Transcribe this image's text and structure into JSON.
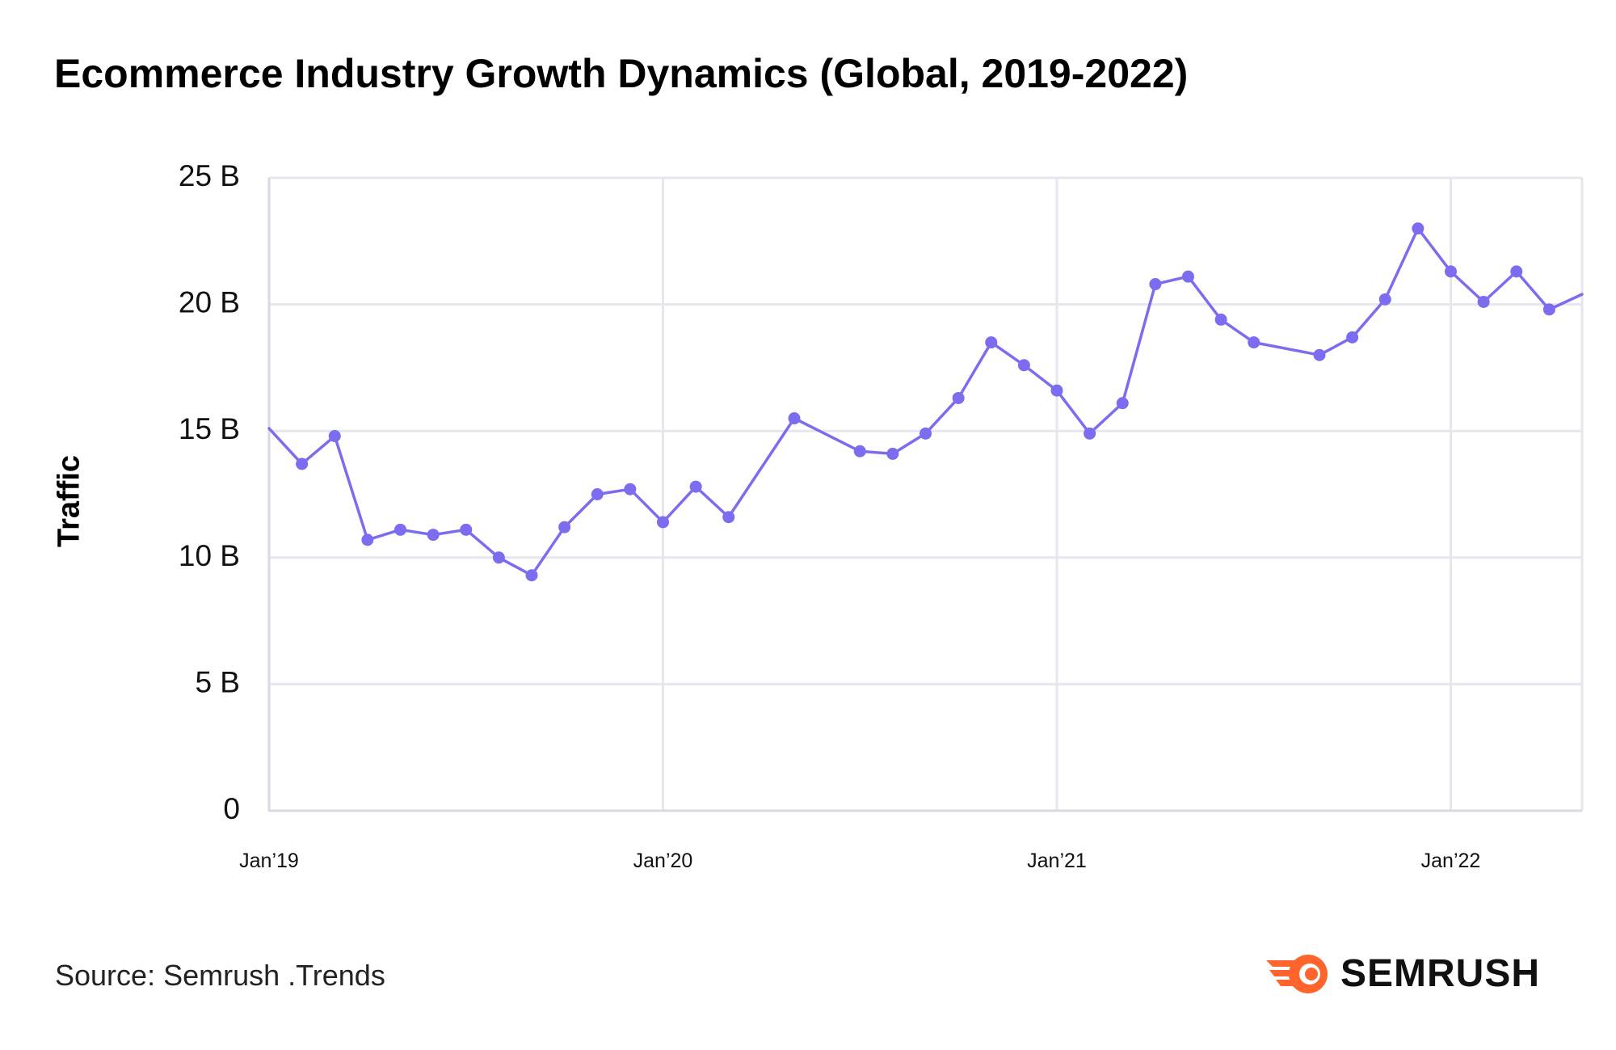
{
  "title": "Ecommerce Industry Growth Dynamics (Global, 2019-2022)",
  "source": "Source: Semrush .Trends",
  "brand": {
    "name": "SEMRUSH",
    "logo_icon": "semrush-fireball-icon",
    "accent": "#FF642D"
  },
  "chart_data": {
    "type": "line",
    "title": "Ecommerce Industry Growth Dynamics (Global, 2019-2022)",
    "xlabel": "",
    "ylabel": "Traffic",
    "ylim": [
      0,
      25
    ],
    "xlim": [
      0,
      40
    ],
    "y_ticks": [
      0,
      5,
      10,
      15,
      20,
      25
    ],
    "y_tick_labels": [
      "0",
      "5 B",
      "10 B",
      "15 B",
      "20 B",
      "25 B"
    ],
    "x_ticks": [
      0,
      12,
      24,
      36
    ],
    "x_tick_labels": [
      "Jan’19",
      "Jan’20",
      "Jan’21",
      "Jan’22"
    ],
    "grid": true,
    "line_color": "#7B6CF0",
    "series": [
      {
        "name": "Traffic",
        "x": [
          0,
          1,
          2,
          3,
          4,
          5,
          6,
          7,
          8,
          9,
          10,
          11,
          12,
          13,
          14,
          16,
          18,
          19,
          20,
          21,
          22,
          23,
          24,
          25,
          26,
          27,
          28,
          29,
          30,
          32,
          33,
          34,
          35,
          36,
          37,
          38,
          39,
          40
        ],
        "values": [
          15.1,
          13.7,
          14.8,
          10.7,
          11.1,
          10.9,
          11.1,
          10.0,
          9.3,
          11.2,
          12.5,
          12.7,
          11.4,
          12.8,
          11.6,
          15.5,
          14.2,
          14.1,
          14.9,
          16.3,
          18.5,
          17.6,
          16.6,
          14.9,
          16.1,
          20.8,
          21.1,
          19.4,
          18.5,
          18.0,
          18.7,
          20.2,
          23.0,
          21.3,
          20.1,
          21.3,
          19.8,
          20.4
        ],
        "markers": [
          false,
          true,
          true,
          true,
          true,
          true,
          true,
          true,
          true,
          true,
          true,
          true,
          true,
          true,
          true,
          true,
          true,
          true,
          true,
          true,
          true,
          true,
          true,
          true,
          true,
          true,
          true,
          true,
          true,
          true,
          true,
          true,
          true,
          true,
          true,
          true,
          true,
          false
        ]
      }
    ]
  }
}
